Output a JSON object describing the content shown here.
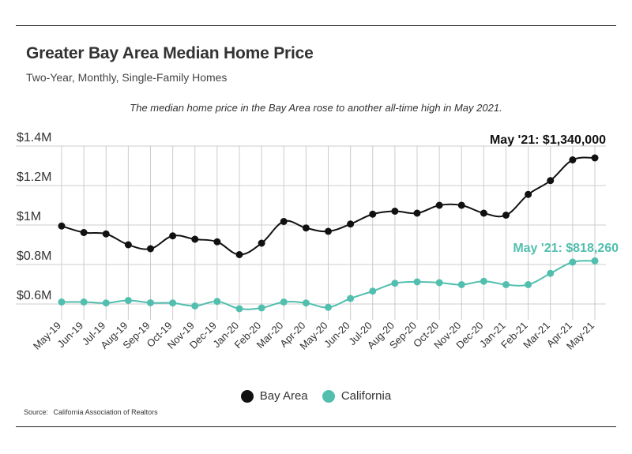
{
  "header": {
    "title": "Greater Bay Area Median Home Price",
    "subtitle": "Two-Year, Monthly, Single-Family Homes",
    "note": "The median home price in the Bay Area rose to another all-time high in May 2021."
  },
  "footer": {
    "source_label": "Source:",
    "source_text": "California Association of Realtors"
  },
  "colors": {
    "bay_area": "#111111",
    "california": "#52bfae",
    "grid": "#cccccc"
  },
  "chart_data": {
    "type": "line",
    "x": [
      "May-19",
      "Jun-19",
      "Jul-19",
      "Aug-19",
      "Sep-19",
      "Oct-19",
      "Nov-19",
      "Dec-19",
      "Jan-20",
      "Feb-20",
      "Mar-20",
      "Apr-20",
      "May-20",
      "Jun-20",
      "Jul-20",
      "Aug-20",
      "Sep-20",
      "Oct-20",
      "Nov-20",
      "Dec-20",
      "Jan-21",
      "Feb-21",
      "Mar-21",
      "Apr-21",
      "May-21"
    ],
    "series": [
      {
        "name": "Bay Area",
        "values": [
          995000,
          962000,
          955000,
          900000,
          880000,
          945000,
          928000,
          915000,
          850000,
          908000,
          1018000,
          985000,
          968000,
          1005000,
          1055000,
          1070000,
          1060000,
          1100000,
          1100000,
          1060000,
          1050000,
          1155000,
          1225000,
          1330000,
          1340000
        ]
      },
      {
        "name": "California",
        "values": [
          610000,
          610000,
          605000,
          618000,
          606000,
          605000,
          590000,
          613000,
          576000,
          580000,
          610000,
          605000,
          583000,
          628000,
          665000,
          705000,
          712000,
          708000,
          698000,
          715000,
          698000,
          698000,
          755000,
          812000,
          818260
        ]
      }
    ],
    "y_ticks": [
      {
        "value": 600000,
        "label": "$0.6M"
      },
      {
        "value": 800000,
        "label": "$0.8M"
      },
      {
        "value": 1000000,
        "label": "$1M"
      },
      {
        "value": 1200000,
        "label": "$1.2M"
      },
      {
        "value": 1400000,
        "label": "$1.4M"
      }
    ],
    "ylim": [
      500000,
      1400000
    ],
    "grid": true,
    "legend_position": "bottom-center",
    "annotations": [
      {
        "series": "Bay Area",
        "text": "May '21: $1,340,000"
      },
      {
        "series": "California",
        "text": "May '21: $818,260"
      }
    ]
  }
}
